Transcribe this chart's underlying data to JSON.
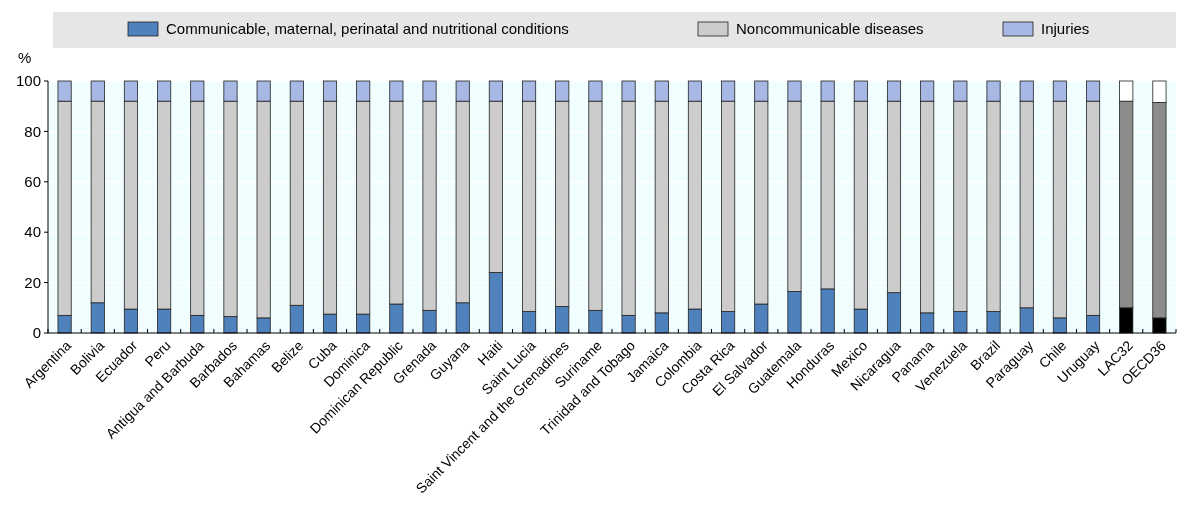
{
  "chart_data": {
    "type": "bar",
    "stacked": true,
    "ylabel": "%",
    "legend": "top",
    "grid": "y",
    "categories": [
      "Argentina",
      "Bolivia",
      "Ecuador",
      "Peru",
      "Antigua and Barbuda",
      "Barbados",
      "Bahamas",
      "Belize",
      "Cuba",
      "Dominica",
      "Dominican Republic",
      "Grenada",
      "Guyana",
      "Haiti",
      "Saint Lucia",
      "Saint Vincent and the Grenadines",
      "Suriname",
      "Trinidad and Tobago",
      "Jamaica",
      "Colombia",
      "Costa Rica",
      "El Salvador",
      "Guatemala",
      "Honduras",
      "Mexico",
      "Nicaragua",
      "Panama",
      "Venezuela",
      "Brazil",
      "Paraguay",
      "Chile",
      "Uruguay",
      "LAC32",
      "OECD36"
    ],
    "ylim": [
      0,
      100
    ],
    "yticks": [
      0,
      20,
      40,
      60,
      80,
      100
    ],
    "series": [
      {
        "name": "Communicable, maternal, perinatal and nutritional conditions",
        "color": "#4f81bd",
        "colors": [
          "#4f81bd",
          "#4f81bd",
          "#4f81bd",
          "#4f81bd",
          "#4f81bd",
          "#4f81bd",
          "#4f81bd",
          "#4f81bd",
          "#4f81bd",
          "#4f81bd",
          "#4f81bd",
          "#4f81bd",
          "#4f81bd",
          "#4f81bd",
          "#4f81bd",
          "#4f81bd",
          "#4f81bd",
          "#4f81bd",
          "#4f81bd",
          "#4f81bd",
          "#4f81bd",
          "#4f81bd",
          "#4f81bd",
          "#4f81bd",
          "#4f81bd",
          "#4f81bd",
          "#4f81bd",
          "#4f81bd",
          "#4f81bd",
          "#4f81bd",
          "#4f81bd",
          "#4f81bd",
          "#000000",
          "#000000"
        ],
        "values": [
          7,
          12,
          9.5,
          9.5,
          7,
          6.5,
          6,
          11,
          7.5,
          7.5,
          11.5,
          9,
          12,
          24,
          8.5,
          10.5,
          9,
          7,
          8,
          9.5,
          8.5,
          11.5,
          16.5,
          17.5,
          9.5,
          16,
          8,
          8.5,
          8.5,
          10,
          6,
          7,
          10,
          6
        ]
      },
      {
        "name": "Noncommunicable diseases",
        "color": "#cccccc",
        "colors": [
          "#cccccc",
          "#cccccc",
          "#cccccc",
          "#cccccc",
          "#cccccc",
          "#cccccc",
          "#cccccc",
          "#cccccc",
          "#cccccc",
          "#cccccc",
          "#cccccc",
          "#cccccc",
          "#cccccc",
          "#cccccc",
          "#cccccc",
          "#cccccc",
          "#cccccc",
          "#cccccc",
          "#cccccc",
          "#cccccc",
          "#cccccc",
          "#cccccc",
          "#cccccc",
          "#cccccc",
          "#cccccc",
          "#cccccc",
          "#cccccc",
          "#cccccc",
          "#cccccc",
          "#cccccc",
          "#cccccc",
          "#cccccc",
          "#8c8c8c",
          "#8c8c8c"
        ],
        "values": [
          85,
          80,
          82.5,
          82.5,
          85,
          85.5,
          86,
          81,
          84.5,
          84.5,
          80.5,
          83,
          80,
          68,
          83.5,
          81.5,
          83,
          85,
          84,
          82.5,
          83.5,
          80.5,
          75.5,
          74.5,
          82.5,
          76,
          84,
          83.5,
          83.5,
          82,
          86,
          85,
          82,
          85.5
        ]
      },
      {
        "name": "Injuries",
        "color": "#a7b8e4",
        "colors": [
          "#a7b8e4",
          "#a7b8e4",
          "#a7b8e4",
          "#a7b8e4",
          "#a7b8e4",
          "#a7b8e4",
          "#a7b8e4",
          "#a7b8e4",
          "#a7b8e4",
          "#a7b8e4",
          "#a7b8e4",
          "#a7b8e4",
          "#a7b8e4",
          "#a7b8e4",
          "#a7b8e4",
          "#a7b8e4",
          "#a7b8e4",
          "#a7b8e4",
          "#a7b8e4",
          "#a7b8e4",
          "#a7b8e4",
          "#a7b8e4",
          "#a7b8e4",
          "#a7b8e4",
          "#a7b8e4",
          "#a7b8e4",
          "#a7b8e4",
          "#a7b8e4",
          "#a7b8e4",
          "#a7b8e4",
          "#a7b8e4",
          "#a7b8e4",
          "#ffffff",
          "#ffffff"
        ],
        "values": [
          8,
          8,
          8,
          8,
          8,
          8,
          8,
          8,
          8,
          8,
          8,
          8,
          8,
          8,
          8,
          8,
          8,
          8,
          8,
          8,
          8,
          8,
          8,
          8,
          8,
          8,
          8,
          8,
          8,
          8,
          8,
          8,
          8,
          8.5
        ]
      }
    ]
  }
}
